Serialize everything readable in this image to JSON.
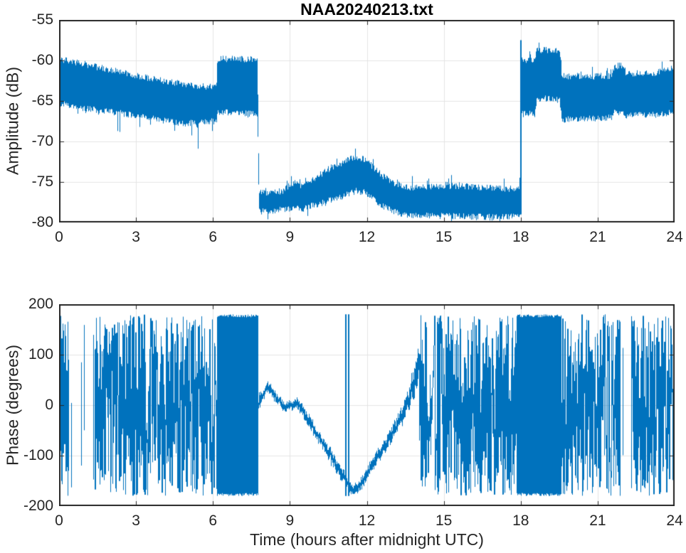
{
  "style": {
    "background": "#ffffff",
    "line_color": "#0072BD",
    "grid_color": "#e4e4e4",
    "axis_color": "#262626",
    "text_color": "#262626",
    "title_color": "#000000"
  },
  "chart_data": [
    {
      "type": "line",
      "title": "NAA20240213.txt",
      "ylabel": "Amplitude (dB)",
      "xlim": [
        0,
        24
      ],
      "ylim": [
        -80,
        -55
      ],
      "xticks": [
        0,
        3,
        6,
        9,
        12,
        15,
        18,
        21,
        24
      ],
      "yticks": [
        -80,
        -75,
        -70,
        -65,
        -60,
        -55
      ],
      "grid": true,
      "series_name": "VLF signal amplitude vs time (noisy band, shown as [time_h, max_dB, min_dB] envelope)",
      "envelope": [
        [
          0.0,
          -59.9,
          -65.3
        ],
        [
          0.8,
          -60.3,
          -65.8
        ],
        [
          1.6,
          -60.9,
          -66.2
        ],
        [
          2.4,
          -61.4,
          -66.5
        ],
        [
          3.2,
          -62.0,
          -66.9
        ],
        [
          4.0,
          -62.5,
          -67.4
        ],
        [
          4.8,
          -62.9,
          -67.8
        ],
        [
          5.6,
          -63.2,
          -67.6
        ],
        [
          6.14,
          -63.3,
          -67.5
        ],
        [
          6.18,
          -59.8,
          -66.3
        ],
        [
          7.0,
          -59.8,
          -66.5
        ],
        [
          7.74,
          -59.9,
          -66.6
        ],
        [
          7.8,
          -76.2,
          -78.6
        ],
        [
          8.2,
          -76.4,
          -78.7
        ],
        [
          8.7,
          -76.2,
          -78.4
        ],
        [
          9.2,
          -74.9,
          -78.2
        ],
        [
          9.5,
          -75.6,
          -78.4
        ],
        [
          9.9,
          -74.6,
          -77.9
        ],
        [
          10.4,
          -73.7,
          -77.4
        ],
        [
          10.9,
          -72.9,
          -76.9
        ],
        [
          11.3,
          -72.2,
          -76.4
        ],
        [
          11.6,
          -71.9,
          -76.1
        ],
        [
          11.9,
          -72.2,
          -76.3
        ],
        [
          12.2,
          -73.0,
          -77.0
        ],
        [
          12.6,
          -74.2,
          -78.0
        ],
        [
          13.1,
          -75.2,
          -78.7
        ],
        [
          13.6,
          -75.7,
          -79.1
        ],
        [
          14.5,
          -75.6,
          -79.2
        ],
        [
          15.5,
          -75.5,
          -79.2
        ],
        [
          16.5,
          -75.7,
          -79.3
        ],
        [
          17.98,
          -75.9,
          -79.3
        ],
        [
          18.04,
          -59.9,
          -66.6
        ],
        [
          18.55,
          -59.9,
          -66.6
        ],
        [
          18.62,
          -58.8,
          -64.9
        ],
        [
          19.1,
          -58.7,
          -64.6
        ],
        [
          19.52,
          -58.9,
          -64.9
        ],
        [
          19.6,
          -61.9,
          -67.3
        ],
        [
          20.6,
          -62.0,
          -67.2
        ],
        [
          21.54,
          -61.9,
          -67.0
        ],
        [
          21.62,
          -60.9,
          -66.4
        ],
        [
          22.04,
          -61.0,
          -66.4
        ],
        [
          22.12,
          -61.6,
          -66.8
        ],
        [
          23.2,
          -61.6,
          -66.7
        ],
        [
          23.7,
          -61.2,
          -66.5
        ],
        [
          24.0,
          -60.9,
          -66.3
        ]
      ],
      "spikes": [
        [
          18.02,
          -57.5,
          -79.0
        ]
      ],
      "notable_events": [
        {
          "t": 6.2,
          "event": "step up to -60 dB band"
        },
        {
          "t": 7.75,
          "event": "sharp drop to about -77.5 dB"
        },
        {
          "t": 11.5,
          "event": "daytime bump peak near -72 dB (spikes to -70.4)"
        },
        {
          "t": 18.0,
          "event": "sharp jump with spike to -57.5 dB"
        },
        {
          "t": 19.6,
          "event": "step down to about -62/-67 dB band"
        }
      ]
    },
    {
      "type": "line",
      "ylabel": "Phase (degrees)",
      "xlabel": "Time (hours after midnight UTC)",
      "xlim": [
        0,
        24
      ],
      "ylim": [
        -200,
        200
      ],
      "xticks": [
        0,
        3,
        6,
        9,
        12,
        15,
        18,
        21,
        24
      ],
      "yticks": [
        -200,
        -100,
        0,
        100,
        200
      ],
      "grid": true,
      "series_name": "VLF signal phase vs time, wrapped to +/-180 degrees",
      "segments": [
        {
          "kind": "wrapped",
          "t0": 0,
          "t1": 6.17,
          "range": [
            -180,
            180
          ]
        },
        {
          "kind": "dense",
          "t0": 6.17,
          "t1": 7.78,
          "range": [
            -180,
            180
          ]
        },
        {
          "kind": "coherent",
          "t0": 7.78,
          "t1": 14.05,
          "points": [
            [
              7.78,
              5,
              16
            ],
            [
              7.95,
              22,
              13
            ],
            [
              8.15,
              38,
              11
            ],
            [
              8.35,
              24,
              11
            ],
            [
              8.55,
              9,
              10
            ],
            [
              8.8,
              -3,
              10
            ],
            [
              9.05,
              -1,
              10
            ],
            [
              9.3,
              4,
              11
            ],
            [
              9.55,
              -14,
              12
            ],
            [
              9.8,
              -36,
              13
            ],
            [
              10.15,
              -64,
              14
            ],
            [
              10.55,
              -97,
              15
            ],
            [
              10.95,
              -130,
              15
            ],
            [
              11.2,
              -152,
              13
            ],
            [
              11.45,
              -170,
              9
            ],
            [
              11.7,
              -160,
              11
            ],
            [
              12.0,
              -138,
              13
            ],
            [
              12.35,
              -108,
              14
            ],
            [
              12.75,
              -75,
              15
            ],
            [
              13.15,
              -42,
              17
            ],
            [
              13.55,
              -4,
              22
            ],
            [
              13.85,
              45,
              34
            ],
            [
              14.05,
              85,
              45
            ]
          ],
          "vlines": [
            11.18,
            11.3
          ]
        },
        {
          "kind": "wrapped",
          "t0": 14.05,
          "t1": 17.85,
          "range": [
            -180,
            180
          ]
        },
        {
          "kind": "dense",
          "t0": 17.85,
          "t1": 19.6,
          "range": [
            -180,
            180
          ]
        },
        {
          "kind": "wrapped",
          "t0": 19.6,
          "t1": 24,
          "range": [
            -180,
            180
          ]
        }
      ]
    }
  ]
}
